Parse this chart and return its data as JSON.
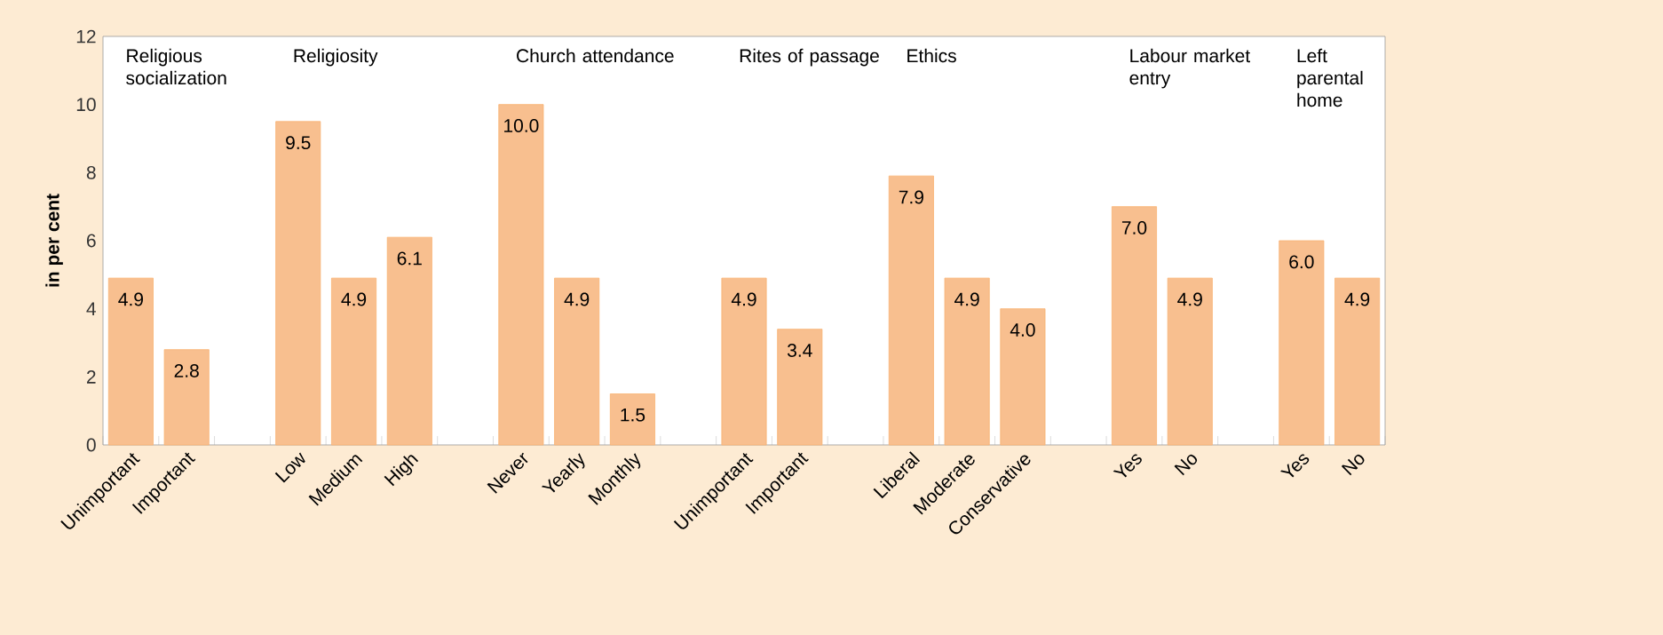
{
  "chart_data": {
    "type": "bar",
    "ylabel": "in per cent",
    "categories": [
      "Unimportant",
      "Important",
      null,
      "Low",
      "Medium",
      "High",
      null,
      "Never",
      "Yearly",
      "Monthly",
      null,
      "Unimportant",
      "Important",
      null,
      "Liberal",
      "Moderate",
      "Conservative",
      null,
      "Yes",
      "No",
      null,
      "Yes",
      "No"
    ],
    "values": [
      4.9,
      2.8,
      null,
      9.5,
      4.9,
      6.1,
      null,
      10.0,
      4.9,
      1.5,
      null,
      4.9,
      3.4,
      null,
      7.9,
      4.9,
      4.0,
      null,
      7.0,
      4.9,
      null,
      6.0,
      4.9
    ],
    "color": "#f8bf8f",
    "ylim": [
      0,
      12
    ],
    "yticks": [
      0,
      2,
      4,
      6,
      8,
      10,
      12
    ],
    "value_labels": [
      "4.9",
      "2.8",
      null,
      "9.5",
      "4.9",
      "6.1",
      null,
      "10.0",
      "4.9",
      "1.5",
      null,
      "4.9",
      "3.4",
      null,
      "7.9",
      "4.9",
      "4.0",
      null,
      "7.0",
      "4.9",
      null,
      "6.0",
      "4.9"
    ],
    "grid": false,
    "annotations": [
      "Religious socialization",
      "Religiosity",
      "Church attendance",
      "Rites of passage",
      "Ethics",
      "Labour market entry",
      "Left parental home"
    ]
  }
}
